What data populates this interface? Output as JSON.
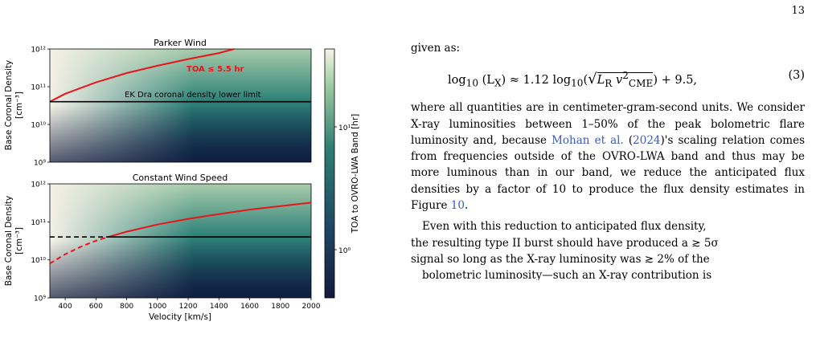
{
  "page_number": "13",
  "text": {
    "intro": "given as:",
    "equation_lhs": "log",
    "equation_base": "10",
    "equation_arg1": "(L",
    "equation_sub1": "X",
    "equation_mid": ") ≈ 1.12 log",
    "equation_base2": "10",
    "equation_sqrt_arg": "L",
    "equation_sub_r": "R",
    "equation_v": " v",
    "equation_sup2": "2",
    "equation_sub_cme": "CME",
    "equation_tail": ") + 9.5,",
    "equation_number": "(3)",
    "p1_part1": "where all quantities are in centimeter-gram-second units. We consider X-ray luminosities between 1–50% of the peak bolometric flare luminosity and, because ",
    "p1_cite_author": "Mohan et al.",
    "p1_cite_open": " (",
    "p1_cite_year": "2024",
    "p1_part2": ")'s scaling relation comes from frequencies outside of the OVRO-LWA band and thus may be more luminous than in our band, we reduce the anticipated flux densities by a factor of 10 to produce the flux density estimates in Figure ",
    "p1_fig_ref": "10",
    "p1_end": ".",
    "p2_line1": "Even with this reduction to anticipated flux density,",
    "p2_line2": "the resulting type II burst should have produced a ≳ 5σ",
    "p2_line3": "signal so long as the X-ray luminosity was ≳ 2% of the",
    "p2_line4": "bolometric luminosity—such an X-ray contribution is"
  },
  "figure": {
    "top_title": "Parker Wind",
    "bottom_title": "Constant Wind Speed",
    "ylabel_line1": "Base Coronal Density",
    "ylabel_line2": "[cm⁻³]",
    "xlabel": "Velocity [km/s]",
    "colorbar_label": "TOA to OVRO-LWA Band [hr]",
    "colorbar_ticks": [
      "10¹",
      "10⁰"
    ],
    "toa_annotation": "TOA ≤ 5.5 hr",
    "ek_dra_label": "EK Dra coronal density lower limit",
    "colors": {
      "curve": "#e8151b",
      "limit_line": "#000000",
      "cmap_low": "#0d1b3e",
      "cmap_mid": "#2e7a72",
      "cmap_high": "#f4f1e6"
    }
  },
  "chart_data": [
    {
      "type": "heatmap",
      "title": "Parker Wind",
      "ylabel": "Base Coronal Density [cm⁻³]",
      "yscale": "log",
      "ylim": [
        1000000000.0,
        1000000000000.0
      ],
      "xlim": [
        300,
        2000
      ],
      "yticks": [
        "10⁹",
        "10¹⁰",
        "10¹¹",
        "10¹²"
      ],
      "color_quantity": "TOA to OVRO-LWA Band [hr]",
      "lines": [
        {
          "style": "solid",
          "color": "#e8151b",
          "x": [
            300,
            400,
            600,
            800,
            1000,
            1200,
            1400,
            1500
          ],
          "y": [
            40000000000.0,
            65000000000.0,
            130000000000.0,
            230000000000.0,
            360000000000.0,
            540000000000.0,
            780000000000.0,
            1000000000000.0
          ]
        },
        {
          "style": "solid",
          "color": "#000000",
          "x": [
            300,
            2000
          ],
          "y": [
            40000000000.0,
            40000000000.0
          ]
        }
      ],
      "annotations": [
        "TOA ≤ 5.5 hr",
        "EK Dra coronal density lower limit"
      ]
    },
    {
      "type": "heatmap",
      "title": "Constant Wind Speed",
      "ylabel": "Base Coronal Density [cm⁻³]",
      "xlabel": "Velocity [km/s]",
      "yscale": "log",
      "ylim": [
        1000000000.0,
        1000000000000.0
      ],
      "xlim": [
        300,
        2000
      ],
      "xticks": [
        400,
        600,
        800,
        1000,
        1200,
        1400,
        1600,
        1800,
        2000
      ],
      "yticks": [
        "10⁹",
        "10¹⁰",
        "10¹¹",
        "10¹²"
      ],
      "color_quantity": "TOA to OVRO-LWA Band [hr]",
      "lines": [
        {
          "style": "dashed",
          "color": "#e8151b",
          "x": [
            300,
            400,
            500,
            600,
            680
          ],
          "y": [
            8000000000.0,
            14000000000.0,
            22000000000.0,
            32000000000.0,
            40000000000.0
          ]
        },
        {
          "style": "solid",
          "color": "#e8151b",
          "x": [
            680,
            800,
            1000,
            1200,
            1400,
            1600,
            1800,
            2000
          ],
          "y": [
            40000000000.0,
            55000000000.0,
            85000000000.0,
            120000000000.0,
            160000000000.0,
            210000000000.0,
            260000000000.0,
            320000000000.0
          ]
        },
        {
          "style": "dashed",
          "color": "#000000",
          "x": [
            300,
            680
          ],
          "y": [
            40000000000.0,
            40000000000.0
          ]
        },
        {
          "style": "solid",
          "color": "#000000",
          "x": [
            680,
            2000
          ],
          "y": [
            40000000000.0,
            40000000000.0
          ]
        }
      ]
    }
  ]
}
